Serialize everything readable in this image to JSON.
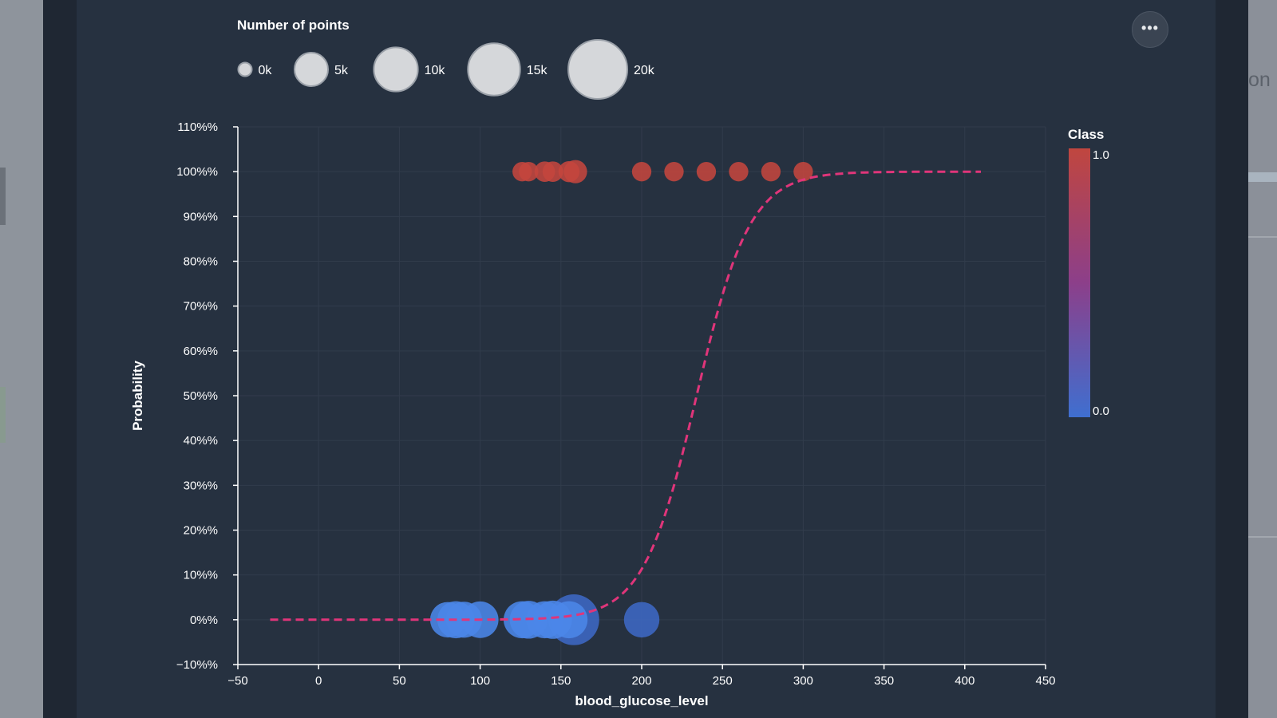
{
  "bg_right_text": "on",
  "more_button": {
    "icon": "more-horizontal-icon",
    "label": "•••"
  },
  "size_legend": {
    "title": "Number of points",
    "items": [
      {
        "label": "0k",
        "count": 0
      },
      {
        "label": "5k",
        "count": 5000
      },
      {
        "label": "10k",
        "count": 10000
      },
      {
        "label": "15k",
        "count": 15000
      },
      {
        "label": "20k",
        "count": 20000
      }
    ]
  },
  "color_legend": {
    "title": "Class",
    "max_label": "1.0",
    "min_label": "0.0",
    "color_high": "#c0463f",
    "color_mid": "#8c3f8a",
    "color_low": "#3f6fd0"
  },
  "colors": {
    "class1": "#c4463d",
    "class0_light": "#4b86e8",
    "class0_dark": "#3d68c4",
    "curve": "#e0357a"
  },
  "chart_data": {
    "type": "scatter",
    "xlabel": "blood_glucose_level",
    "ylabel": "Probability",
    "xlim": [
      -50,
      450
    ],
    "ylim": [
      -10,
      110
    ],
    "xticks": [
      "−50",
      "0",
      "50",
      "100",
      "150",
      "200",
      "250",
      "300",
      "350",
      "400",
      "450"
    ],
    "xtick_values": [
      -50,
      0,
      50,
      100,
      150,
      200,
      250,
      300,
      350,
      400,
      450
    ],
    "yticks": [
      "−10%%",
      "0%%",
      "10%%",
      "20%%",
      "30%%",
      "40%%",
      "50%%",
      "60%%",
      "70%%",
      "80%%",
      "90%%",
      "100%%",
      "110%%"
    ],
    "ytick_values": [
      -10,
      0,
      10,
      20,
      30,
      40,
      50,
      60,
      70,
      80,
      90,
      100,
      110
    ],
    "grid": true,
    "series": [
      {
        "class": 1,
        "points": [
          {
            "x": 126,
            "y": 100,
            "n": 1000
          },
          {
            "x": 130,
            "y": 100,
            "n": 1000
          },
          {
            "x": 140,
            "y": 100,
            "n": 1200
          },
          {
            "x": 145,
            "y": 100,
            "n": 1200
          },
          {
            "x": 155,
            "y": 100,
            "n": 1300
          },
          {
            "x": 159,
            "y": 100,
            "n": 1800
          },
          {
            "x": 200,
            "y": 100,
            "n": 1000
          },
          {
            "x": 220,
            "y": 100,
            "n": 1000
          },
          {
            "x": 240,
            "y": 100,
            "n": 1000
          },
          {
            "x": 260,
            "y": 100,
            "n": 1000
          },
          {
            "x": 280,
            "y": 100,
            "n": 1000
          },
          {
            "x": 300,
            "y": 100,
            "n": 1000
          }
        ]
      },
      {
        "class": 0,
        "points": [
          {
            "x": 100,
            "y": 0,
            "n": 6300
          },
          {
            "x": 158,
            "y": 0,
            "n": 14000
          },
          {
            "x": 200,
            "y": 0,
            "n": 5800
          },
          {
            "x": 80,
            "y": 0,
            "n": 5800
          },
          {
            "x": 85,
            "y": 0,
            "n": 6500
          },
          {
            "x": 90,
            "y": 0,
            "n": 6000
          },
          {
            "x": 126,
            "y": 0,
            "n": 6500
          },
          {
            "x": 130,
            "y": 0,
            "n": 6800
          },
          {
            "x": 140,
            "y": 0,
            "n": 6500
          },
          {
            "x": 145,
            "y": 0,
            "n": 7000
          },
          {
            "x": 155,
            "y": 0,
            "n": 6500
          }
        ]
      }
    ],
    "curve": {
      "type": "logistic",
      "x_from": -30,
      "x_to": 410,
      "midpoint": 234,
      "scale": 16.5
    }
  }
}
